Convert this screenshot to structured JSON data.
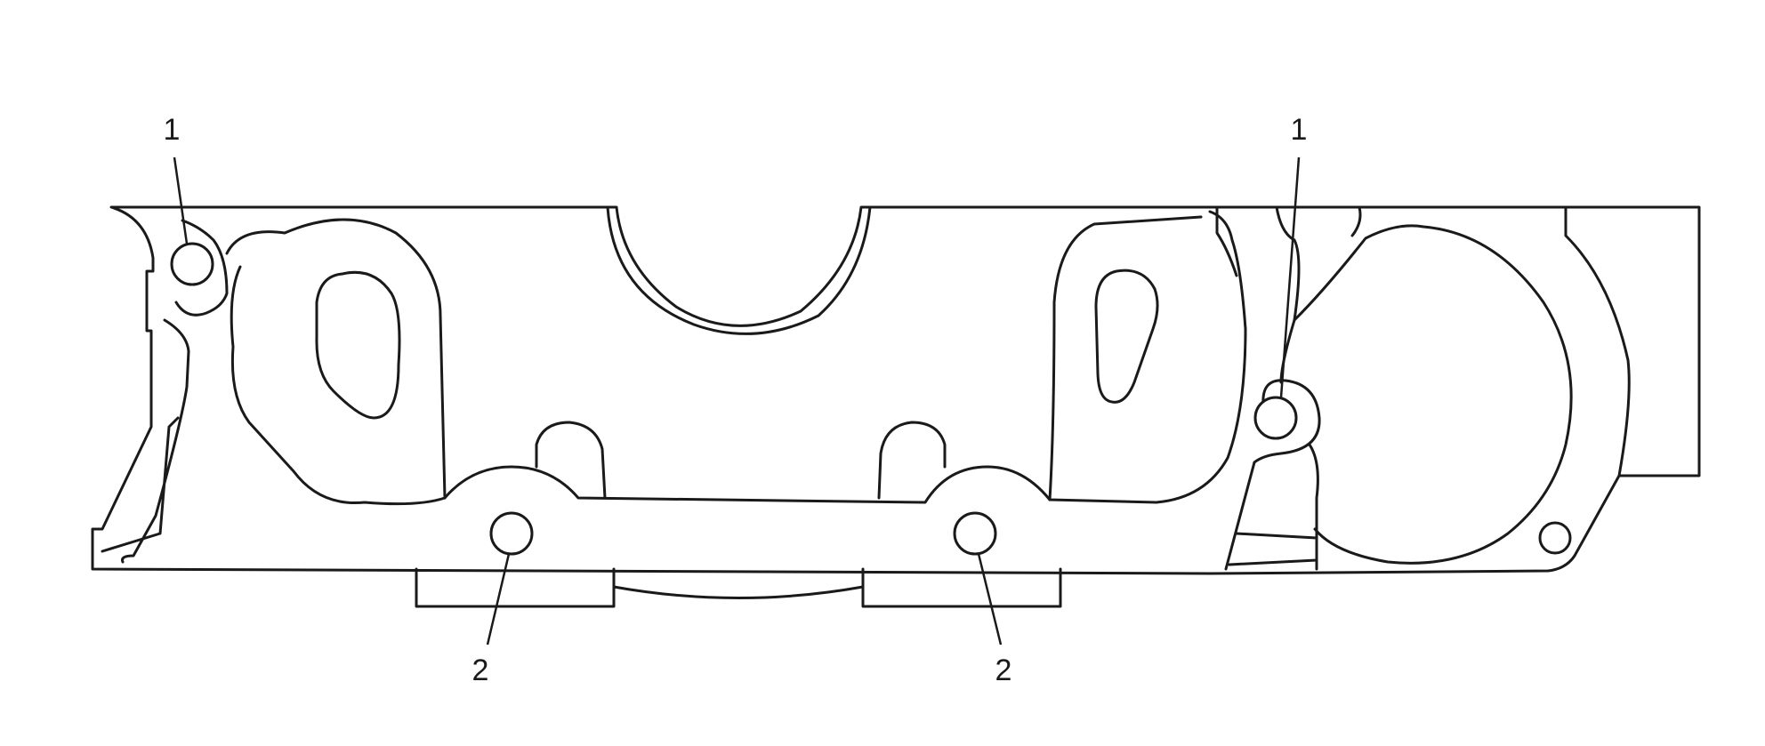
{
  "diagram": {
    "callouts": [
      {
        "id": "left-top",
        "label": "1"
      },
      {
        "id": "right-top",
        "label": "1"
      },
      {
        "id": "left-bottom",
        "label": "2"
      },
      {
        "id": "right-bottom",
        "label": "2"
      }
    ]
  },
  "colors": {
    "line": "#1a1a1a",
    "background": "#ffffff"
  }
}
